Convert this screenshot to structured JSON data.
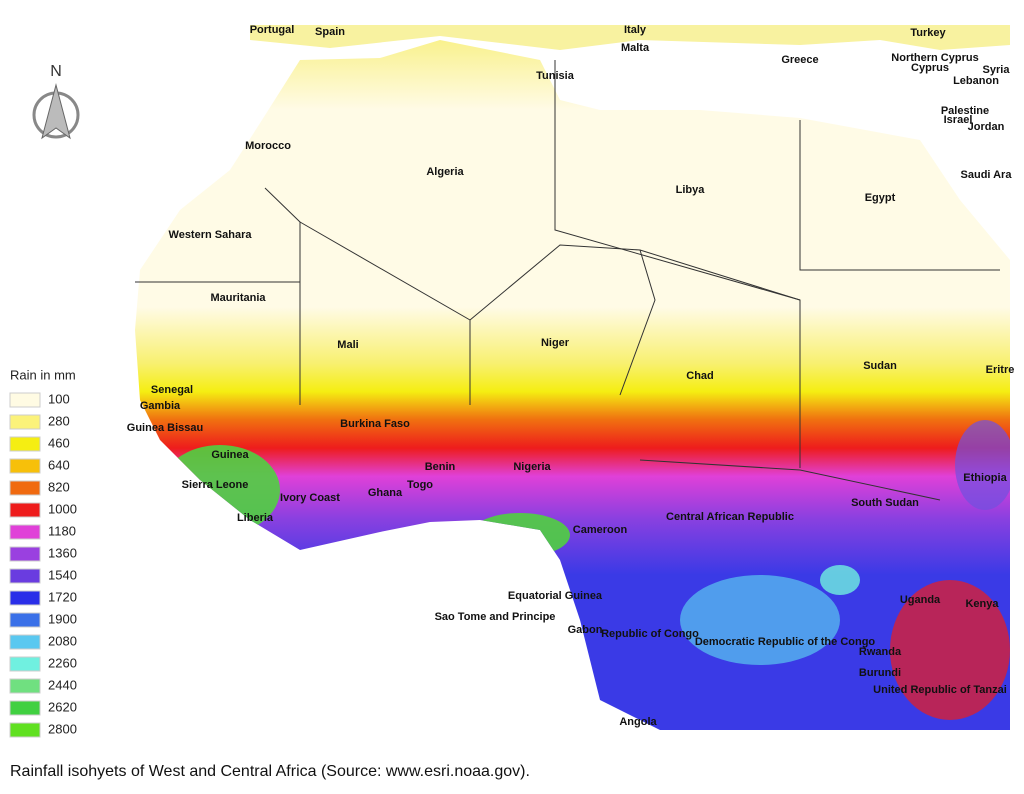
{
  "map": {
    "north_label": "N",
    "countries": [
      {
        "label": "Portugal"
      },
      {
        "label": "Spain"
      },
      {
        "label": "Italy"
      },
      {
        "label": "Malta"
      },
      {
        "label": "Turkey"
      },
      {
        "label": "Greece"
      },
      {
        "label": "Northern Cyprus"
      },
      {
        "label": "Cyprus"
      },
      {
        "label": "Syria"
      },
      {
        "label": "Lebanon"
      },
      {
        "label": "Tunisia"
      },
      {
        "label": "Palestine"
      },
      {
        "label": "Israel"
      },
      {
        "label": "Jordan"
      },
      {
        "label": "Morocco"
      },
      {
        "label": "Algeria"
      },
      {
        "label": "Libya"
      },
      {
        "label": "Egypt"
      },
      {
        "label": "Saudi Ara"
      },
      {
        "label": "Western Sahara"
      },
      {
        "label": "Mauritania"
      },
      {
        "label": "Mali"
      },
      {
        "label": "Niger"
      },
      {
        "label": "Chad"
      },
      {
        "label": "Sudan"
      },
      {
        "label": "Eritre"
      },
      {
        "label": "Senegal"
      },
      {
        "label": "Gambia"
      },
      {
        "label": "Guinea Bissau"
      },
      {
        "label": "Burkina Faso"
      },
      {
        "label": "Guinea"
      },
      {
        "label": "Benin"
      },
      {
        "label": "Nigeria"
      },
      {
        "label": "Ethiopia"
      },
      {
        "label": "Sierra Leone"
      },
      {
        "label": "Ivory Coast"
      },
      {
        "label": "Ghana"
      },
      {
        "label": "Togo"
      },
      {
        "label": "South Sudan"
      },
      {
        "label": "Liberia"
      },
      {
        "label": "Central African Republic"
      },
      {
        "label": "Cameroon"
      },
      {
        "label": "Equatorial Guinea"
      },
      {
        "label": "Uganda"
      },
      {
        "label": "Kenya"
      },
      {
        "label": "Sao Tome and Principe"
      },
      {
        "label": "Gabon"
      },
      {
        "label": "Republic of Congo"
      },
      {
        "label": "Democratic Republic of the Congo"
      },
      {
        "label": "Rwanda"
      },
      {
        "label": "Burundi"
      },
      {
        "label": "United Republic of Tanzai"
      },
      {
        "label": "Angola"
      }
    ]
  },
  "legend": {
    "title": "Rain in mm",
    "items": [
      {
        "value": 100,
        "color": "#fffbe3"
      },
      {
        "value": 280,
        "color": "#fbf27a"
      },
      {
        "value": 460,
        "color": "#f5ee12"
      },
      {
        "value": 640,
        "color": "#f7c00a"
      },
      {
        "value": 820,
        "color": "#f06a10"
      },
      {
        "value": 1000,
        "color": "#ee1c1c"
      },
      {
        "value": 1180,
        "color": "#e040d8"
      },
      {
        "value": 1360,
        "color": "#9a40e0"
      },
      {
        "value": 1540,
        "color": "#6a3ce0"
      },
      {
        "value": 1720,
        "color": "#2a2ee8"
      },
      {
        "value": 1900,
        "color": "#3a70e8"
      },
      {
        "value": 2080,
        "color": "#5ac8f0"
      },
      {
        "value": 2260,
        "color": "#70f0e0"
      },
      {
        "value": 2440,
        "color": "#70e080"
      },
      {
        "value": 2620,
        "color": "#40d040"
      },
      {
        "value": 2800,
        "color": "#60e020"
      }
    ]
  },
  "caption": "Rainfall isohyets of West and Central Africa (Source: www.esri.noaa.gov)."
}
